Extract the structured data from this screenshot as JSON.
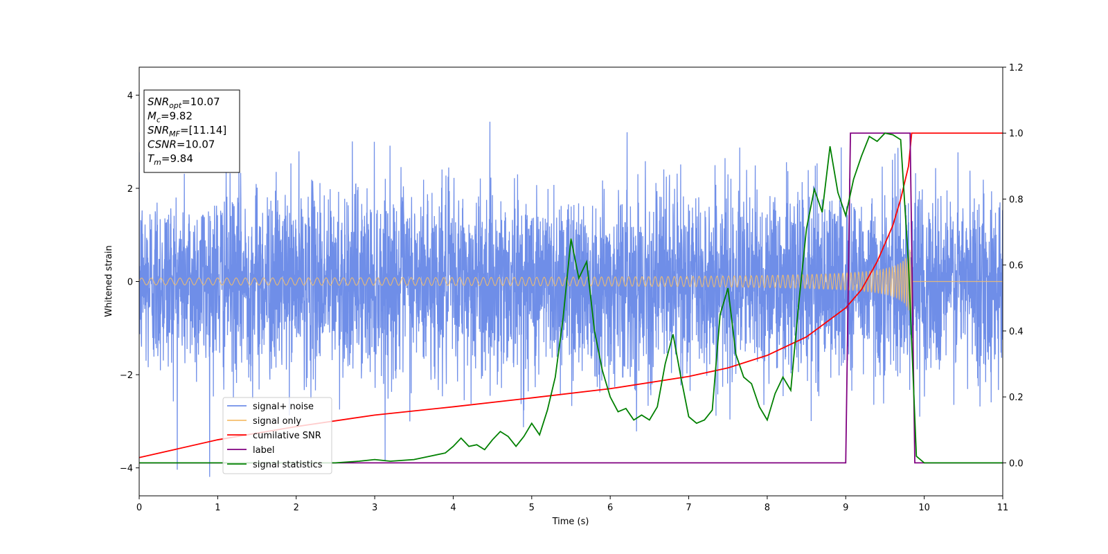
{
  "chart_data": {
    "type": "line",
    "title": "",
    "xlabel": "Time (s)",
    "ylabel": "Whitened strain",
    "xlim": [
      0,
      11
    ],
    "ylim": [
      -4.6,
      4.6
    ],
    "y2lim": [
      -0.1,
      1.2
    ],
    "x_ticks": [
      "0",
      "1",
      "2",
      "3",
      "4",
      "5",
      "6",
      "7",
      "8",
      "9",
      "10",
      "11"
    ],
    "y_ticks": [
      "4",
      "2",
      "0",
      "−2",
      "−4"
    ],
    "y2_ticks": [
      "0.0",
      "0.2",
      "0.4",
      "0.6",
      "0.8",
      "1.0",
      "1.2"
    ],
    "grid": false,
    "legend_position": "lower-left",
    "info_box": {
      "lines": [
        {
          "sym": "SNR",
          "sub": "opt",
          "value": "=10.07"
        },
        {
          "sym": "M",
          "sub": "c",
          "value": "=9.82"
        },
        {
          "sym": "SNR",
          "sub": "MF",
          "value": "=[11.14]"
        },
        {
          "sym": "CSNR",
          "sub": "",
          "value": "=10.07"
        },
        {
          "sym": "T",
          "sub": "m",
          "value": "=9.84"
        }
      ]
    },
    "series": [
      {
        "name": "signal+ noise",
        "color": "#6f8ee8",
        "axis": "left",
        "kind": "noise",
        "sigma": 1.0,
        "duration": 11
      },
      {
        "name": "signal only",
        "color": "#f5be6b",
        "axis": "left",
        "kind": "chirp",
        "merger_time": 9.84,
        "peak_amplitude": 0.8,
        "base_amplitude": 0.04
      },
      {
        "name": "cumilative SNR",
        "color": "#ff0000",
        "axis": "right",
        "x": [
          0,
          1,
          2,
          3,
          4,
          5,
          6,
          7,
          7.5,
          8,
          8.5,
          9,
          9.2,
          9.4,
          9.6,
          9.7,
          9.8,
          9.84,
          11
        ],
        "y": [
          0.016,
          0.07,
          0.11,
          0.145,
          0.17,
          0.197,
          0.225,
          0.262,
          0.288,
          0.326,
          0.382,
          0.47,
          0.525,
          0.61,
          0.72,
          0.8,
          0.9,
          1.0,
          1.0
        ]
      },
      {
        "name": "label",
        "color": "#800080",
        "axis": "right",
        "x": [
          0,
          9.0,
          9.06,
          9.82,
          9.88,
          11
        ],
        "y": [
          0,
          0,
          1,
          1,
          0,
          0
        ]
      },
      {
        "name": "signal statistics",
        "color": "#008000",
        "axis": "right",
        "x": [
          0,
          0.5,
          1.0,
          1.5,
          2.0,
          2.5,
          2.8,
          3.0,
          3.2,
          3.5,
          3.7,
          3.9,
          4.0,
          4.1,
          4.2,
          4.3,
          4.4,
          4.5,
          4.6,
          4.7,
          4.8,
          4.9,
          5.0,
          5.1,
          5.2,
          5.3,
          5.4,
          5.5,
          5.6,
          5.7,
          5.8,
          5.9,
          6.0,
          6.1,
          6.2,
          6.3,
          6.4,
          6.5,
          6.6,
          6.7,
          6.8,
          6.9,
          7.0,
          7.1,
          7.2,
          7.3,
          7.4,
          7.5,
          7.6,
          7.7,
          7.8,
          7.9,
          8.0,
          8.1,
          8.2,
          8.3,
          8.4,
          8.5,
          8.6,
          8.7,
          8.8,
          8.9,
          9.0,
          9.1,
          9.2,
          9.3,
          9.4,
          9.5,
          9.6,
          9.7,
          9.8,
          9.9,
          10.0,
          11.0
        ],
        "y": [
          0.0,
          0.0,
          0.0,
          0.0,
          0.0,
          0.0,
          0.005,
          0.01,
          0.005,
          0.01,
          0.02,
          0.03,
          0.05,
          0.075,
          0.05,
          0.055,
          0.04,
          0.07,
          0.095,
          0.08,
          0.05,
          0.08,
          0.12,
          0.085,
          0.16,
          0.26,
          0.44,
          0.68,
          0.56,
          0.61,
          0.4,
          0.28,
          0.2,
          0.155,
          0.165,
          0.13,
          0.145,
          0.13,
          0.17,
          0.3,
          0.39,
          0.26,
          0.14,
          0.12,
          0.13,
          0.16,
          0.45,
          0.53,
          0.33,
          0.26,
          0.24,
          0.17,
          0.13,
          0.21,
          0.26,
          0.22,
          0.48,
          0.71,
          0.83,
          0.76,
          0.96,
          0.82,
          0.75,
          0.86,
          0.93,
          0.99,
          0.975,
          1.0,
          0.995,
          0.98,
          0.6,
          0.02,
          0.0,
          0.0
        ]
      }
    ]
  }
}
